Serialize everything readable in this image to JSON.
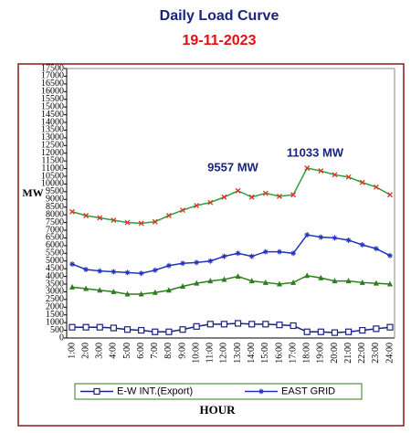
{
  "chart_data": {
    "type": "line",
    "title": "Daily Load Curve",
    "subtitle": "19-11-2023",
    "y_label": "MW",
    "x_label": "HOUR",
    "annotations": [
      "9557 MW",
      "11033 MW"
    ],
    "categories": [
      "1:00",
      "2:00",
      "3:00",
      "4:00",
      "5:00",
      "6:00",
      "7:00",
      "8:00",
      "9:00",
      "10:00",
      "11:00",
      "12:00",
      "13:00",
      "14:00",
      "15:00",
      "16:00",
      "17:00",
      "18:00",
      "19:00",
      "20:00",
      "21:00",
      "22:00",
      "23:00",
      "24:00"
    ],
    "series": [
      {
        "color": "#2e9e3e",
        "marker": "x",
        "marker_color": "#e03020",
        "values": [
          8200,
          7950,
          7800,
          7650,
          7500,
          7450,
          7550,
          7950,
          8300,
          8600,
          8800,
          9150,
          9557,
          9150,
          9400,
          9200,
          9300,
          11033,
          10850,
          10600,
          10450,
          10100,
          9800,
          9300
        ]
      },
      {
        "name": "EAST GRID",
        "color": "#2233bb",
        "marker": "star",
        "marker_color": "#2233bb",
        "values": [
          4800,
          4450,
          4350,
          4300,
          4250,
          4200,
          4400,
          4700,
          4850,
          4900,
          5000,
          5300,
          5500,
          5300,
          5600,
          5600,
          5500,
          6700,
          6550,
          6500,
          6350,
          6050,
          5800,
          5350
        ]
      },
      {
        "color": "#2e7d1e",
        "marker": "triangle",
        "marker_color": "#2e7d1e",
        "values": [
          3300,
          3200,
          3100,
          3000,
          2850,
          2850,
          2950,
          3100,
          3350,
          3550,
          3700,
          3800,
          4000,
          3700,
          3600,
          3500,
          3600,
          4050,
          3900,
          3700,
          3700,
          3600,
          3550,
          3500
        ]
      },
      {
        "name": "E-W INT.(Export)",
        "color": "#1a237e",
        "marker": "square",
        "marker_color": "#1a237e",
        "values": [
          700,
          700,
          700,
          650,
          550,
          500,
          400,
          400,
          550,
          750,
          900,
          900,
          950,
          900,
          900,
          850,
          800,
          400,
          400,
          350,
          400,
          500,
          600,
          700
        ]
      }
    ],
    "legend_order": [
      3,
      1
    ],
    "ylim": [
      0,
      17500
    ],
    "yticks": [
      0,
      500,
      1000,
      1500,
      2000,
      2500,
      3000,
      3500,
      4000,
      4500,
      5000,
      5500,
      6000,
      6500,
      7000,
      7500,
      8000,
      8500,
      9000,
      9500,
      10000,
      10500,
      11000,
      11500,
      12000,
      12500,
      13000,
      13500,
      14000,
      14500,
      15000,
      15500,
      16000,
      16500,
      17000,
      17500
    ],
    "grid": false
  }
}
